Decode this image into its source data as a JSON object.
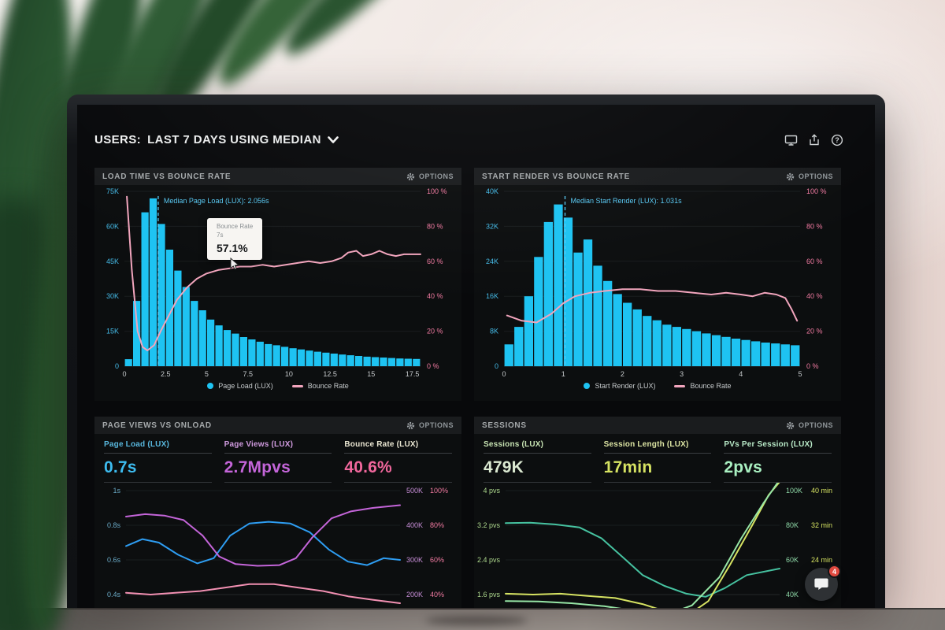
{
  "header": {
    "title_label": "USERS:",
    "title_value": "LAST 7 DAYS USING MEDIAN",
    "icons": [
      "display-icon",
      "share-icon",
      "help-icon"
    ]
  },
  "labels": {
    "options": "OPTIONS"
  },
  "chat": {
    "badge": "4"
  },
  "chart_data": [
    {
      "type": "histogram+line",
      "title": "LOAD TIME VS BOUNCE RATE",
      "x_domain": [
        0,
        18
      ],
      "x_ticks": [
        0,
        2.5,
        5,
        7.5,
        10,
        12.5,
        15,
        17.5
      ],
      "left_axis": {
        "color": "#45bbe8",
        "domain": [
          0,
          75
        ],
        "ticks": [
          {
            "v": 75,
            "t": "75K"
          },
          {
            "v": 60,
            "t": "60K"
          },
          {
            "v": 45,
            "t": "45K"
          },
          {
            "v": 30,
            "t": "30K"
          },
          {
            "v": 15,
            "t": "15K"
          },
          {
            "v": 0,
            "t": "0"
          }
        ]
      },
      "right_axis": {
        "color": "#f27ba2",
        "domain": [
          0,
          100
        ],
        "ticks": [
          {
            "v": 100,
            "t": "100 %"
          },
          {
            "v": 80,
            "t": "80 %"
          },
          {
            "v": 60,
            "t": "60 %"
          },
          {
            "v": 40,
            "t": "40 %"
          },
          {
            "v": 20,
            "t": "20 %"
          },
          {
            "v": 0,
            "t": "0 %"
          }
        ]
      },
      "bars": {
        "name": "Page Load (LUX)",
        "color": "#1ec3f2",
        "unit": "K",
        "x_start": 0,
        "x_step": 0.5,
        "values": [
          3,
          28,
          66,
          72,
          61,
          50,
          41,
          34,
          28,
          24,
          20,
          17.5,
          15.5,
          14,
          12.5,
          11.5,
          10.5,
          9.5,
          9,
          8.3,
          7.7,
          7.2,
          6.7,
          6.2,
          5.8,
          5.4,
          5,
          4.7,
          4.4,
          4.1,
          3.9,
          3.7,
          3.5,
          3.3,
          3.2,
          3.1
        ]
      },
      "median": {
        "x": 2.056,
        "label": "Median Page Load (LUX): 2.056s",
        "color": "#58c8f2"
      },
      "lines": [
        {
          "name": "Bounce Rate",
          "color": "#f2a5bd",
          "domain": [
            0,
            100
          ],
          "points": [
            [
              0.15,
              97
            ],
            [
              0.45,
              55
            ],
            [
              0.8,
              20
            ],
            [
              1.1,
              11
            ],
            [
              1.4,
              9
            ],
            [
              1.8,
              12
            ],
            [
              2.2,
              20
            ],
            [
              2.7,
              29
            ],
            [
              3.2,
              38
            ],
            [
              3.8,
              45
            ],
            [
              4.4,
              50
            ],
            [
              5,
              53
            ],
            [
              5.7,
              55
            ],
            [
              6.4,
              56
            ],
            [
              7,
              57
            ],
            [
              7.7,
              57
            ],
            [
              8.4,
              58
            ],
            [
              9.1,
              57
            ],
            [
              9.8,
              58
            ],
            [
              10.5,
              59
            ],
            [
              11.2,
              60
            ],
            [
              11.9,
              59
            ],
            [
              12.6,
              60
            ],
            [
              13.2,
              62
            ],
            [
              13.6,
              65
            ],
            [
              14.1,
              66
            ],
            [
              14.5,
              63
            ],
            [
              15,
              64
            ],
            [
              15.5,
              66
            ],
            [
              16,
              64
            ],
            [
              16.5,
              63
            ],
            [
              17,
              64
            ],
            [
              17.5,
              64
            ],
            [
              18,
              64
            ]
          ]
        }
      ],
      "tooltip": {
        "series": "Bounce Rate",
        "x": "7s",
        "value": "57.1%"
      },
      "legend": [
        {
          "label": "Page Load (LUX)",
          "color": "#1ec3f2",
          "shape": "dot"
        },
        {
          "label": "Bounce Rate",
          "color": "#f2a5bd",
          "shape": "line"
        }
      ]
    },
    {
      "type": "histogram+line",
      "title": "START RENDER VS BOUNCE RATE",
      "x_domain": [
        0,
        5
      ],
      "x_ticks": [
        0,
        1,
        2,
        3,
        4,
        5
      ],
      "left_axis": {
        "color": "#45bbe8",
        "domain": [
          0,
          40
        ],
        "ticks": [
          {
            "v": 40,
            "t": "40K"
          },
          {
            "v": 32,
            "t": "32K"
          },
          {
            "v": 24,
            "t": "24K"
          },
          {
            "v": 16,
            "t": "16K"
          },
          {
            "v": 8,
            "t": "8K"
          },
          {
            "v": 0,
            "t": "0"
          }
        ]
      },
      "right_axis": {
        "color": "#f27ba2",
        "domain": [
          0,
          100
        ],
        "ticks": [
          {
            "v": 100,
            "t": "100 %"
          },
          {
            "v": 80,
            "t": "80 %"
          },
          {
            "v": 60,
            "t": "60 %"
          },
          {
            "v": 40,
            "t": "40 %"
          },
          {
            "v": 20,
            "t": "20 %"
          },
          {
            "v": 0,
            "t": "0 %"
          }
        ]
      },
      "bars": {
        "name": "Start Render (LUX)",
        "color": "#1ec3f2",
        "unit": "K",
        "x_start": 0,
        "x_step": 0.1667,
        "values": [
          5,
          9,
          16,
          25,
          33,
          37,
          34,
          26,
          29,
          23,
          19.5,
          16.5,
          14.5,
          13,
          11.5,
          10.5,
          9.5,
          9,
          8.5,
          8,
          7.5,
          7.1,
          6.7,
          6.3,
          6,
          5.7,
          5.4,
          5.2,
          5,
          4.8
        ]
      },
      "median": {
        "x": 1.031,
        "label": "Median Start Render (LUX): 1.031s",
        "color": "#58c8f2"
      },
      "lines": [
        {
          "name": "Bounce Rate",
          "color": "#f2a5bd",
          "domain": [
            0,
            100
          ],
          "points": [
            [
              0.05,
              29
            ],
            [
              0.3,
              26
            ],
            [
              0.55,
              25
            ],
            [
              0.8,
              30
            ],
            [
              1,
              36
            ],
            [
              1.2,
              40
            ],
            [
              1.45,
              42
            ],
            [
              1.7,
              43
            ],
            [
              2,
              44
            ],
            [
              2.3,
              44
            ],
            [
              2.6,
              43
            ],
            [
              2.9,
              43
            ],
            [
              3.2,
              42
            ],
            [
              3.5,
              41
            ],
            [
              3.75,
              42
            ],
            [
              4,
              41
            ],
            [
              4.2,
              40
            ],
            [
              4.4,
              42
            ],
            [
              4.6,
              41
            ],
            [
              4.75,
              39
            ],
            [
              4.85,
              33
            ],
            [
              4.95,
              26
            ]
          ]
        }
      ],
      "legend": [
        {
          "label": "Start Render (LUX)",
          "color": "#1ec3f2",
          "shape": "dot"
        },
        {
          "label": "Bounce Rate",
          "color": "#f2a5bd",
          "shape": "line"
        }
      ]
    },
    {
      "type": "line",
      "title": "PAGE VIEWS VS ONLOAD",
      "x_domain": [
        0,
        1
      ],
      "metrics": [
        {
          "label": "Page Load (LUX)",
          "value": "0.7s",
          "label_color": "#58b7dd",
          "value_color": "#3dbcf0"
        },
        {
          "label": "Page Views (LUX)",
          "value": "2.7Mpvs",
          "label_color": "#cf9ade",
          "value_color": "#c465d9"
        },
        {
          "label": "Bounce Rate (LUX)",
          "value": "40.6%",
          "label_color": "#eae6d2",
          "value_color": "#f0679c"
        }
      ],
      "left_axis": {
        "color": "#69a8c4",
        "domain": [
          0.4,
          1.0
        ],
        "ticks": [
          {
            "v": 1,
            "t": "1s"
          },
          {
            "v": 0.8,
            "t": "0.8s"
          },
          {
            "v": 0.6,
            "t": "0.6s"
          },
          {
            "v": 0.4,
            "t": "0.4s"
          }
        ]
      },
      "right_axis": {
        "color": "#c98fd9",
        "color2": "#f27ba2",
        "gap": 30,
        "domain": [
          0.4,
          1.0
        ],
        "ticks": [
          {
            "v": 1,
            "t": "500K",
            "t2": "100%"
          },
          {
            "v": 0.8,
            "t": "400K",
            "t2": "80%"
          },
          {
            "v": 0.6,
            "t": "300K",
            "t2": "60%"
          },
          {
            "v": 0.4,
            "t": "200K",
            "t2": "40%"
          }
        ]
      },
      "lines": [
        {
          "name": "Page Load (LUX)",
          "color": "#2e9df2",
          "domain": [
            0.4,
            1.0
          ],
          "points": [
            [
              0,
              0.68
            ],
            [
              0.06,
              0.72
            ],
            [
              0.12,
              0.7
            ],
            [
              0.19,
              0.63
            ],
            [
              0.26,
              0.58
            ],
            [
              0.32,
              0.61
            ],
            [
              0.38,
              0.74
            ],
            [
              0.45,
              0.81
            ],
            [
              0.52,
              0.82
            ],
            [
              0.6,
              0.81
            ],
            [
              0.67,
              0.76
            ],
            [
              0.74,
              0.66
            ],
            [
              0.81,
              0.59
            ],
            [
              0.88,
              0.57
            ],
            [
              0.94,
              0.61
            ],
            [
              1,
              0.6
            ]
          ]
        },
        {
          "name": "Page Views (LUX)",
          "color": "#c465d9",
          "domain": [
            200,
            500
          ],
          "points": [
            [
              0,
              425
            ],
            [
              0.07,
              432
            ],
            [
              0.14,
              428
            ],
            [
              0.21,
              415
            ],
            [
              0.28,
              370
            ],
            [
              0.34,
              310
            ],
            [
              0.4,
              288
            ],
            [
              0.48,
              283
            ],
            [
              0.56,
              285
            ],
            [
              0.62,
              305
            ],
            [
              0.68,
              365
            ],
            [
              0.75,
              420
            ],
            [
              0.82,
              440
            ],
            [
              0.9,
              450
            ],
            [
              1,
              458
            ]
          ]
        },
        {
          "name": "Bounce Rate (LUX)",
          "color": "#f290b2",
          "domain": [
            40,
            100
          ],
          "points": [
            [
              0,
              41
            ],
            [
              0.09,
              40
            ],
            [
              0.18,
              41
            ],
            [
              0.27,
              42
            ],
            [
              0.36,
              44
            ],
            [
              0.45,
              46
            ],
            [
              0.54,
              46
            ],
            [
              0.63,
              44
            ],
            [
              0.72,
              42
            ],
            [
              0.81,
              39
            ],
            [
              0.9,
              37
            ],
            [
              1,
              35
            ]
          ]
        }
      ]
    },
    {
      "type": "line",
      "title": "SESSIONS",
      "x_domain": [
        0,
        1
      ],
      "metrics": [
        {
          "label": "Sessions (LUX)",
          "value": "479K",
          "label_color": "#c6e2b2",
          "value_color": "#dcead2"
        },
        {
          "label": "Session Length (LUX)",
          "value": "17min",
          "label_color": "#dce4a3",
          "value_color": "#d6e362"
        },
        {
          "label": "PVs Per Session (LUX)",
          "value": "2pvs",
          "label_color": "#b7e8c6",
          "value_color": "#a9f0c1"
        }
      ],
      "left_axis": {
        "color": "#aed98e",
        "domain": [
          1.6,
          4.0
        ],
        "ticks": [
          {
            "v": 4,
            "t": "4 pvs"
          },
          {
            "v": 3.2,
            "t": "3.2 pvs"
          },
          {
            "v": 2.4,
            "t": "2.4 pvs"
          },
          {
            "v": 1.6,
            "t": "1.6 pvs"
          }
        ]
      },
      "right_axis": {
        "color": "#8fd9a8",
        "color2": "#d6e362",
        "gap": 32,
        "domain": [
          1.6,
          4.0
        ],
        "ticks": [
          {
            "v": 4,
            "t": "100K",
            "t2": "40 min"
          },
          {
            "v": 3.2,
            "t": "80K",
            "t2": "32 min"
          },
          {
            "v": 2.4,
            "t": "60K",
            "t2": "24 min"
          },
          {
            "v": 1.6,
            "t": "40K"
          }
        ]
      },
      "lines": [
        {
          "name": "Sessions (LUX)",
          "color": "#46c2a0",
          "domain": [
            1.6,
            4.0
          ],
          "points": [
            [
              0,
              3.25
            ],
            [
              0.09,
              3.26
            ],
            [
              0.18,
              3.22
            ],
            [
              0.27,
              3.15
            ],
            [
              0.35,
              2.9
            ],
            [
              0.43,
              2.45
            ],
            [
              0.5,
              2.05
            ],
            [
              0.58,
              1.8
            ],
            [
              0.66,
              1.62
            ],
            [
              0.73,
              1.55
            ],
            [
              0.8,
              1.75
            ],
            [
              0.88,
              2.05
            ],
            [
              1,
              2.2
            ]
          ]
        },
        {
          "name": "Session Length (LUX)",
          "color": "#d6e362",
          "domain": [
            1.6,
            4.0
          ],
          "points": [
            [
              0,
              1.62
            ],
            [
              0.1,
              1.6
            ],
            [
              0.2,
              1.62
            ],
            [
              0.3,
              1.57
            ],
            [
              0.4,
              1.52
            ],
            [
              0.5,
              1.38
            ],
            [
              0.58,
              1.22
            ],
            [
              0.66,
              1.1
            ],
            [
              0.74,
              1.45
            ],
            [
              0.82,
              2.3
            ],
            [
              0.9,
              3.2
            ],
            [
              0.96,
              3.9
            ],
            [
              1,
              4.2
            ]
          ]
        },
        {
          "name": "PVs Per Session (LUX)",
          "color": "#97e6a6",
          "domain": [
            1.6,
            4.0
          ],
          "points": [
            [
              0,
              1.45
            ],
            [
              0.12,
              1.44
            ],
            [
              0.24,
              1.4
            ],
            [
              0.36,
              1.33
            ],
            [
              0.48,
              1.22
            ],
            [
              0.58,
              1.12
            ],
            [
              0.68,
              1.35
            ],
            [
              0.78,
              2.0
            ],
            [
              0.86,
              2.9
            ],
            [
              0.94,
              3.7
            ],
            [
              1,
              4.25
            ]
          ]
        }
      ]
    }
  ]
}
